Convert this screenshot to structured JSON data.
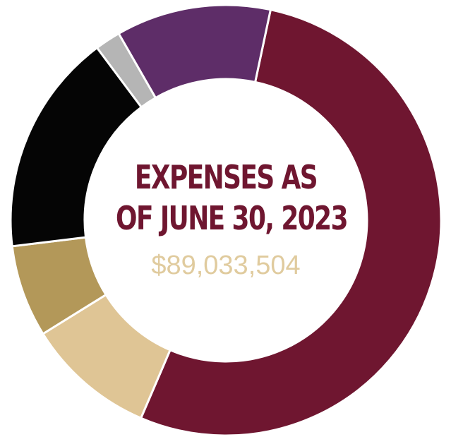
{
  "chart_data": {
    "type": "pie",
    "variant": "donut",
    "title_lines": [
      "EXPENSES AS",
      "OF JUNE 30, 2023"
    ],
    "total": "$89,033,504",
    "slices": [
      {
        "color": "#6f1630",
        "share": 0.553
      },
      {
        "color": "#dfc595",
        "share": 0.101
      },
      {
        "color": "#b39859",
        "share": 0.072
      },
      {
        "color": "#050505",
        "share": 0.174
      },
      {
        "color": "#b5b5b5",
        "share": 0.02
      },
      {
        "color": "#5e2d68",
        "share": 0.121
      }
    ],
    "legend": false
  },
  "colors": {
    "title": "#6f1630",
    "total": "#e0cb9e",
    "separator": "#ffffff"
  }
}
